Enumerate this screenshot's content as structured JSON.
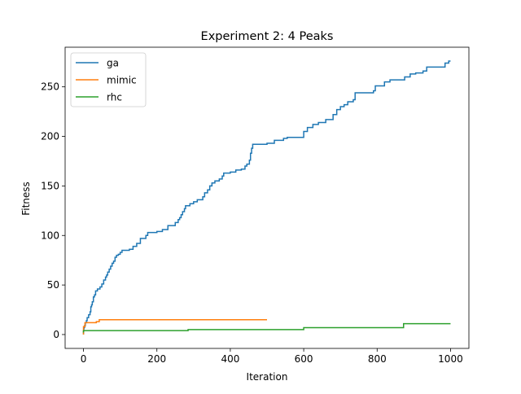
{
  "chart_data": {
    "type": "line",
    "title": "Experiment 2: 4 Peaks",
    "xlabel": "Iteration",
    "ylabel": "Fitness",
    "xlim": [
      -50,
      1050
    ],
    "ylim": [
      -14,
      290
    ],
    "xticks": [
      0,
      200,
      400,
      600,
      800,
      1000
    ],
    "yticks": [
      0,
      50,
      100,
      150,
      200,
      250
    ],
    "grid": false,
    "legend": "top-left",
    "series": [
      {
        "name": "ga",
        "color": "#1f77b4",
        "points": [
          [
            0,
            0
          ],
          [
            0,
            3
          ],
          [
            1,
            4
          ],
          [
            1,
            6
          ],
          [
            3,
            7
          ],
          [
            3,
            9
          ],
          [
            5,
            9
          ],
          [
            5,
            12
          ],
          [
            8,
            12
          ],
          [
            8,
            14
          ],
          [
            10,
            14
          ],
          [
            10,
            17
          ],
          [
            14,
            17
          ],
          [
            14,
            20
          ],
          [
            18,
            20
          ],
          [
            18,
            23
          ],
          [
            20,
            23
          ],
          [
            20,
            28
          ],
          [
            22,
            28
          ],
          [
            22,
            30
          ],
          [
            24,
            30
          ],
          [
            24,
            33
          ],
          [
            27,
            33
          ],
          [
            27,
            38
          ],
          [
            30,
            38
          ],
          [
            30,
            40
          ],
          [
            33,
            40
          ],
          [
            33,
            44
          ],
          [
            38,
            44
          ],
          [
            38,
            46
          ],
          [
            45,
            46
          ],
          [
            45,
            48
          ],
          [
            50,
            48
          ],
          [
            50,
            51
          ],
          [
            55,
            51
          ],
          [
            55,
            55
          ],
          [
            60,
            55
          ],
          [
            60,
            58
          ],
          [
            63,
            58
          ],
          [
            63,
            60
          ],
          [
            66,
            60
          ],
          [
            66,
            63
          ],
          [
            70,
            63
          ],
          [
            70,
            66
          ],
          [
            74,
            66
          ],
          [
            74,
            69
          ],
          [
            78,
            69
          ],
          [
            78,
            72
          ],
          [
            82,
            72
          ],
          [
            82,
            74
          ],
          [
            86,
            74
          ],
          [
            86,
            78
          ],
          [
            90,
            78
          ],
          [
            90,
            80
          ],
          [
            95,
            80
          ],
          [
            95,
            81
          ],
          [
            100,
            81
          ],
          [
            100,
            83
          ],
          [
            105,
            83
          ],
          [
            105,
            85
          ],
          [
            125,
            85
          ],
          [
            125,
            86
          ],
          [
            135,
            86
          ],
          [
            135,
            89
          ],
          [
            145,
            89
          ],
          [
            145,
            92
          ],
          [
            155,
            92
          ],
          [
            155,
            97
          ],
          [
            170,
            97
          ],
          [
            170,
            100
          ],
          [
            175,
            100
          ],
          [
            175,
            103
          ],
          [
            200,
            103
          ],
          [
            200,
            104
          ],
          [
            215,
            104
          ],
          [
            215,
            106
          ],
          [
            230,
            106
          ],
          [
            230,
            110
          ],
          [
            250,
            110
          ],
          [
            250,
            113
          ],
          [
            258,
            113
          ],
          [
            258,
            116
          ],
          [
            262,
            116
          ],
          [
            262,
            118
          ],
          [
            266,
            118
          ],
          [
            266,
            121
          ],
          [
            270,
            121
          ],
          [
            270,
            124
          ],
          [
            275,
            124
          ],
          [
            275,
            127
          ],
          [
            278,
            127
          ],
          [
            278,
            130
          ],
          [
            290,
            130
          ],
          [
            290,
            132
          ],
          [
            300,
            132
          ],
          [
            300,
            134
          ],
          [
            310,
            134
          ],
          [
            310,
            136
          ],
          [
            325,
            136
          ],
          [
            325,
            139
          ],
          [
            330,
            139
          ],
          [
            330,
            143
          ],
          [
            338,
            143
          ],
          [
            338,
            146
          ],
          [
            344,
            146
          ],
          [
            344,
            150
          ],
          [
            350,
            150
          ],
          [
            350,
            153
          ],
          [
            358,
            153
          ],
          [
            358,
            155
          ],
          [
            370,
            155
          ],
          [
            370,
            157
          ],
          [
            378,
            157
          ],
          [
            378,
            160
          ],
          [
            382,
            160
          ],
          [
            382,
            163
          ],
          [
            400,
            163
          ],
          [
            400,
            164
          ],
          [
            415,
            164
          ],
          [
            415,
            166
          ],
          [
            430,
            166
          ],
          [
            430,
            167
          ],
          [
            440,
            167
          ],
          [
            440,
            170
          ],
          [
            445,
            170
          ],
          [
            445,
            172
          ],
          [
            452,
            172
          ],
          [
            452,
            176
          ],
          [
            455,
            176
          ],
          [
            455,
            183
          ],
          [
            458,
            183
          ],
          [
            458,
            188
          ],
          [
            461,
            188
          ],
          [
            461,
            192
          ],
          [
            500,
            192
          ],
          [
            500,
            193
          ],
          [
            520,
            193
          ],
          [
            520,
            196
          ],
          [
            545,
            196
          ],
          [
            545,
            198
          ],
          [
            555,
            198
          ],
          [
            555,
            199
          ],
          [
            600,
            199
          ],
          [
            600,
            205
          ],
          [
            610,
            205
          ],
          [
            610,
            209
          ],
          [
            625,
            209
          ],
          [
            625,
            212
          ],
          [
            640,
            212
          ],
          [
            640,
            214
          ],
          [
            660,
            214
          ],
          [
            660,
            217
          ],
          [
            680,
            217
          ],
          [
            680,
            222
          ],
          [
            690,
            222
          ],
          [
            690,
            227
          ],
          [
            700,
            227
          ],
          [
            700,
            230
          ],
          [
            710,
            230
          ],
          [
            710,
            232
          ],
          [
            720,
            232
          ],
          [
            720,
            235
          ],
          [
            735,
            235
          ],
          [
            735,
            237
          ],
          [
            740,
            237
          ],
          [
            740,
            244
          ],
          [
            790,
            244
          ],
          [
            790,
            246
          ],
          [
            795,
            246
          ],
          [
            795,
            251
          ],
          [
            820,
            251
          ],
          [
            820,
            255
          ],
          [
            835,
            255
          ],
          [
            835,
            257
          ],
          [
            875,
            257
          ],
          [
            875,
            260
          ],
          [
            890,
            260
          ],
          [
            890,
            263
          ],
          [
            905,
            263
          ],
          [
            905,
            264
          ],
          [
            925,
            264
          ],
          [
            925,
            266
          ],
          [
            935,
            266
          ],
          [
            935,
            270
          ],
          [
            985,
            270
          ],
          [
            985,
            274
          ],
          [
            995,
            274
          ],
          [
            995,
            276
          ],
          [
            1000,
            276
          ]
        ]
      },
      {
        "name": "mimic",
        "color": "#ff7f0e",
        "points": [
          [
            0,
            0
          ],
          [
            0,
            8
          ],
          [
            4,
            8
          ],
          [
            4,
            12
          ],
          [
            35,
            12
          ],
          [
            35,
            13
          ],
          [
            43,
            13
          ],
          [
            43,
            15
          ],
          [
            500,
            15
          ]
        ]
      },
      {
        "name": "rhc",
        "color": "#2ca02c",
        "points": [
          [
            0,
            2
          ],
          [
            0,
            4
          ],
          [
            285,
            4
          ],
          [
            285,
            5
          ],
          [
            600,
            5
          ],
          [
            600,
            7
          ],
          [
            872,
            7
          ],
          [
            872,
            11
          ],
          [
            1000,
            11
          ]
        ]
      }
    ]
  }
}
